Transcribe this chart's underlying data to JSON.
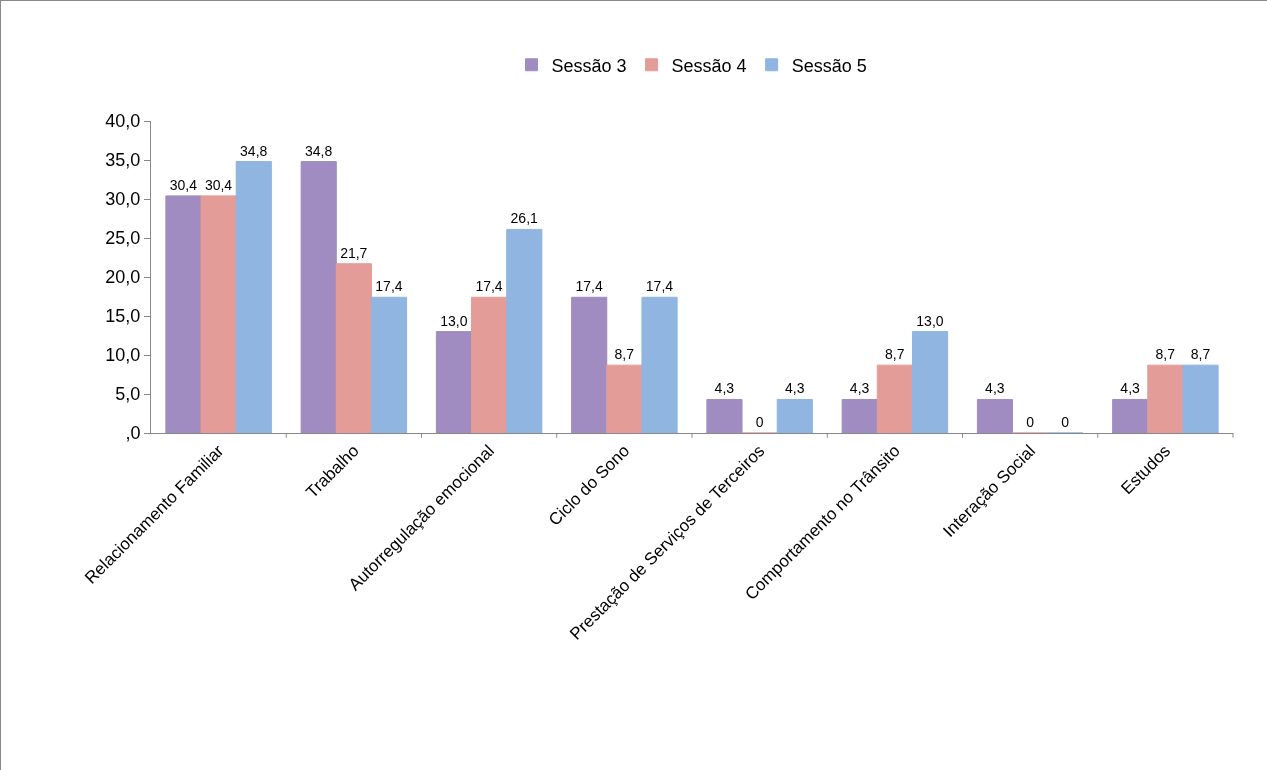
{
  "chart_data": {
    "type": "bar",
    "categories": [
      "Relacionamento Familiar",
      "Trabalho",
      "Autorregulação emocional",
      "Ciclo do Sono",
      "Prestação de Serviços de Terceiros",
      "Comportamento no Trânsito",
      "Interação Social",
      "Estudos"
    ],
    "series": [
      {
        "name": "Sessão 3",
        "color": "#a08cc0",
        "values": [
          30.4,
          34.8,
          13.0,
          17.4,
          4.3,
          4.3,
          4.3,
          4.3
        ],
        "value_labels": [
          "30,4",
          "34,8",
          "13,0",
          "17,4",
          "4,3",
          "4,3",
          "4,3",
          "4,3"
        ]
      },
      {
        "name": "Sessão 4",
        "color": "#e39c98",
        "values": [
          30.4,
          21.7,
          17.4,
          8.7,
          0,
          8.7,
          0,
          8.7
        ],
        "value_labels": [
          "30,4",
          "21,7",
          "17,4",
          "8,7",
          "0",
          "8,7",
          "0",
          "8,7"
        ]
      },
      {
        "name": "Sessão 5",
        "color": "#8fb5e0",
        "values": [
          34.8,
          17.4,
          26.1,
          17.4,
          4.3,
          13.0,
          0,
          8.7
        ],
        "value_labels": [
          "34,8",
          "17,4",
          "26,1",
          "17,4",
          "4,3",
          "13,0",
          "0",
          "8,7"
        ]
      }
    ],
    "ylim": [
      0,
      40
    ],
    "yticks": [
      {
        "value": 0,
        "label": ",0"
      },
      {
        "value": 5,
        "label": "5,0"
      },
      {
        "value": 10,
        "label": "10,0"
      },
      {
        "value": 15,
        "label": "15,0"
      },
      {
        "value": 20,
        "label": "20,0"
      },
      {
        "value": 25,
        "label": "25,0"
      },
      {
        "value": 30,
        "label": "30,0"
      },
      {
        "value": 35,
        "label": "35,0"
      },
      {
        "value": 40,
        "label": "40,0"
      }
    ],
    "grid": false,
    "legend": "top"
  }
}
